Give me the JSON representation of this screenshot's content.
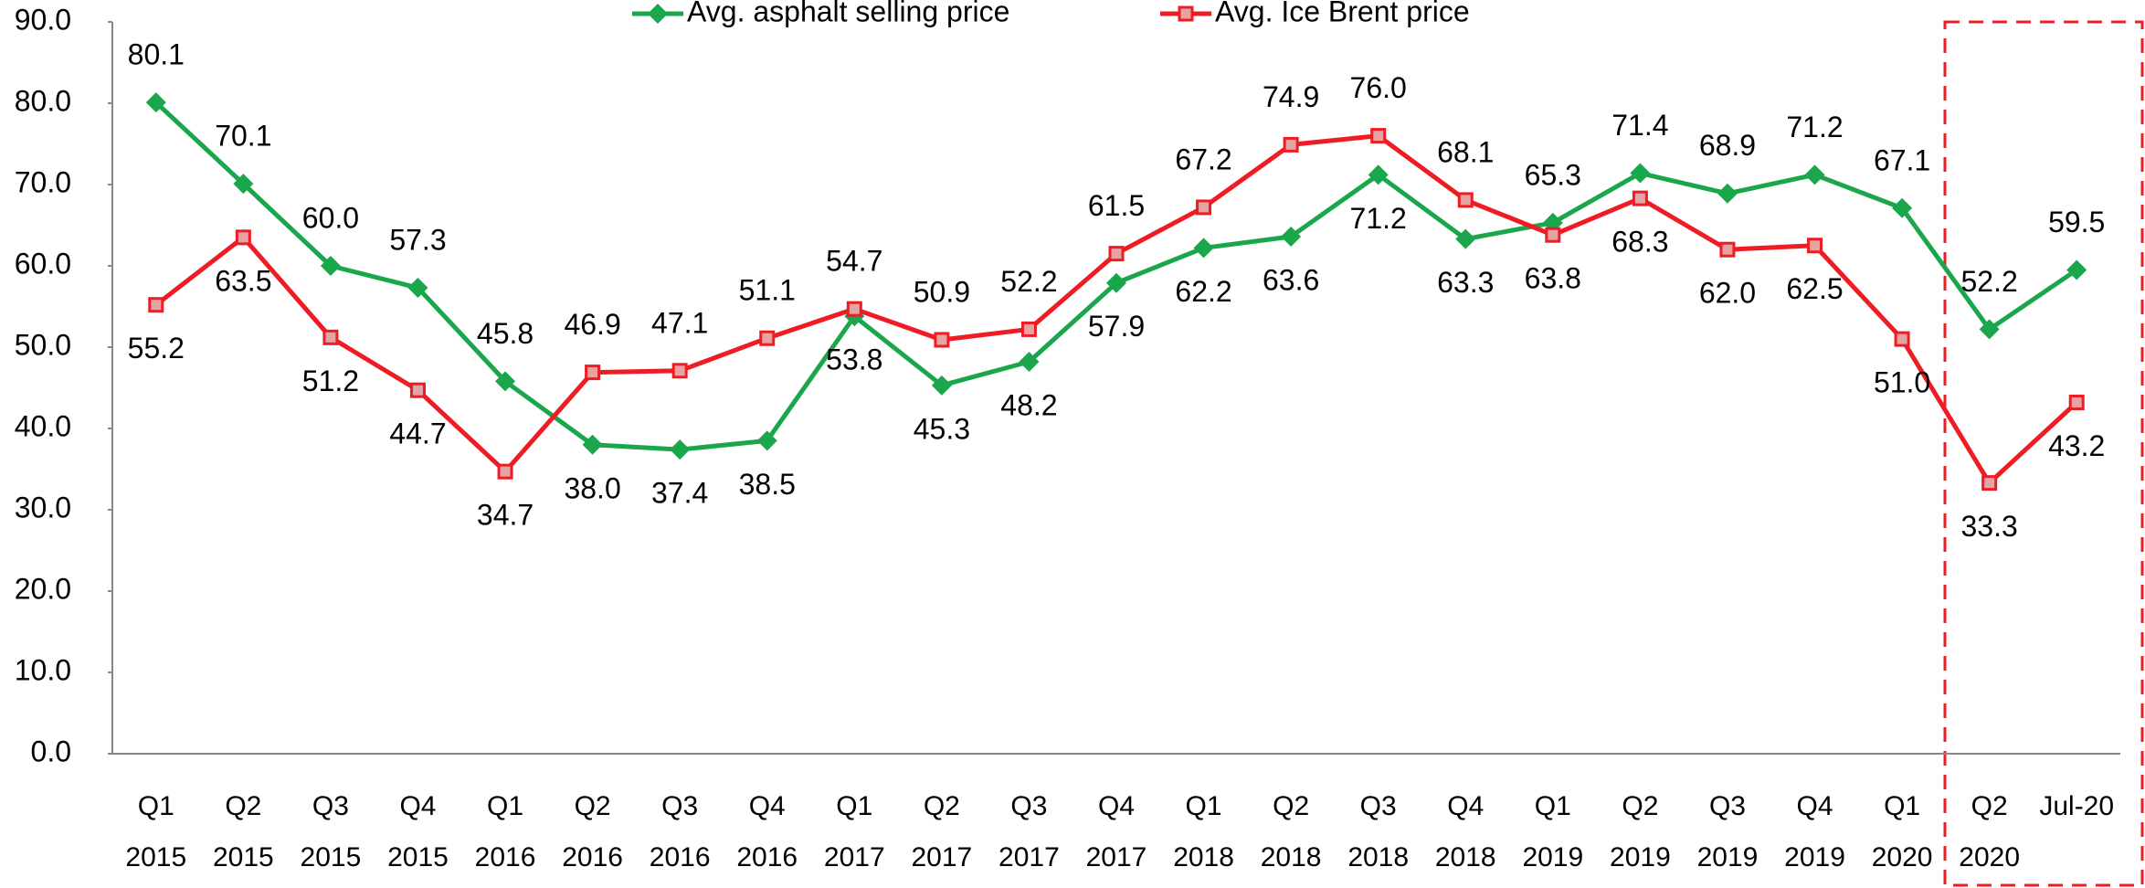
{
  "chart_data": {
    "type": "line",
    "categories": [
      "Q1 2015",
      "Q2 2015",
      "Q3 2015",
      "Q4 2015",
      "Q1 2016",
      "Q2 2016",
      "Q3 2016",
      "Q4 2016",
      "Q1 2017",
      "Q2 2017",
      "Q3 2017",
      "Q4 2017",
      "Q1 2018",
      "Q2 2018",
      "Q3 2018",
      "Q4 2018",
      "Q1 2019",
      "Q2 2019",
      "Q3 2019",
      "Q4 2019",
      "Q1 2020",
      "Q2 2020",
      "Jul-20"
    ],
    "series": [
      {
        "name": "Avg. asphalt selling price",
        "color": "#1aa64a",
        "marker": "diamond",
        "values": [
          80.1,
          70.1,
          60.0,
          57.3,
          45.8,
          38.0,
          37.4,
          38.5,
          53.8,
          45.3,
          48.2,
          57.9,
          62.2,
          63.6,
          71.2,
          63.3,
          65.3,
          71.4,
          68.9,
          71.2,
          67.1,
          52.2,
          59.5
        ],
        "value_labels": [
          "80.1",
          "70.1",
          "60.0",
          "57.3",
          "45.8",
          "38.0",
          "37.4",
          "38.5",
          "53.8",
          "45.3",
          "48.2",
          "57.9",
          "62.2",
          "63.6",
          "71.2",
          "63.3",
          "65.3",
          "71.4",
          "68.9",
          "71.2",
          "67.1",
          "52.2",
          "59.5"
        ]
      },
      {
        "name": "Avg. Ice Brent price",
        "color": "#ee1c24",
        "marker": "square",
        "values": [
          55.2,
          63.5,
          51.2,
          44.7,
          34.7,
          46.9,
          47.1,
          51.1,
          54.7,
          50.9,
          52.2,
          61.5,
          67.2,
          74.9,
          76.0,
          68.1,
          63.8,
          68.3,
          62.0,
          62.5,
          51.0,
          33.3,
          43.2
        ],
        "value_labels": [
          "55.2",
          "63.5",
          "51.2",
          "44.7",
          "34.7",
          "46.9",
          "47.1",
          "51.1",
          "54.7",
          "50.9",
          "52.2",
          "61.5",
          "67.2",
          "74.9",
          "76.0",
          "68.1",
          "63.8",
          "68.3",
          "62.0",
          "62.5",
          "51.0",
          "33.3",
          "43.2"
        ]
      }
    ],
    "ylim": [
      0,
      90
    ],
    "yticks": [
      {
        "value": 0,
        "label": "0.0"
      },
      {
        "value": 10,
        "label": "10.0"
      },
      {
        "value": 20,
        "label": "20.0"
      },
      {
        "value": 30,
        "label": "30.0"
      },
      {
        "value": 40,
        "label": "40.0"
      },
      {
        "value": 50,
        "label": "50.0"
      },
      {
        "value": 60,
        "label": "60.0"
      },
      {
        "value": 70,
        "label": "70.0"
      },
      {
        "value": 80,
        "label": "80.0"
      },
      {
        "value": 90,
        "label": "90.0"
      }
    ],
    "grid": false,
    "legend": "top"
  }
}
